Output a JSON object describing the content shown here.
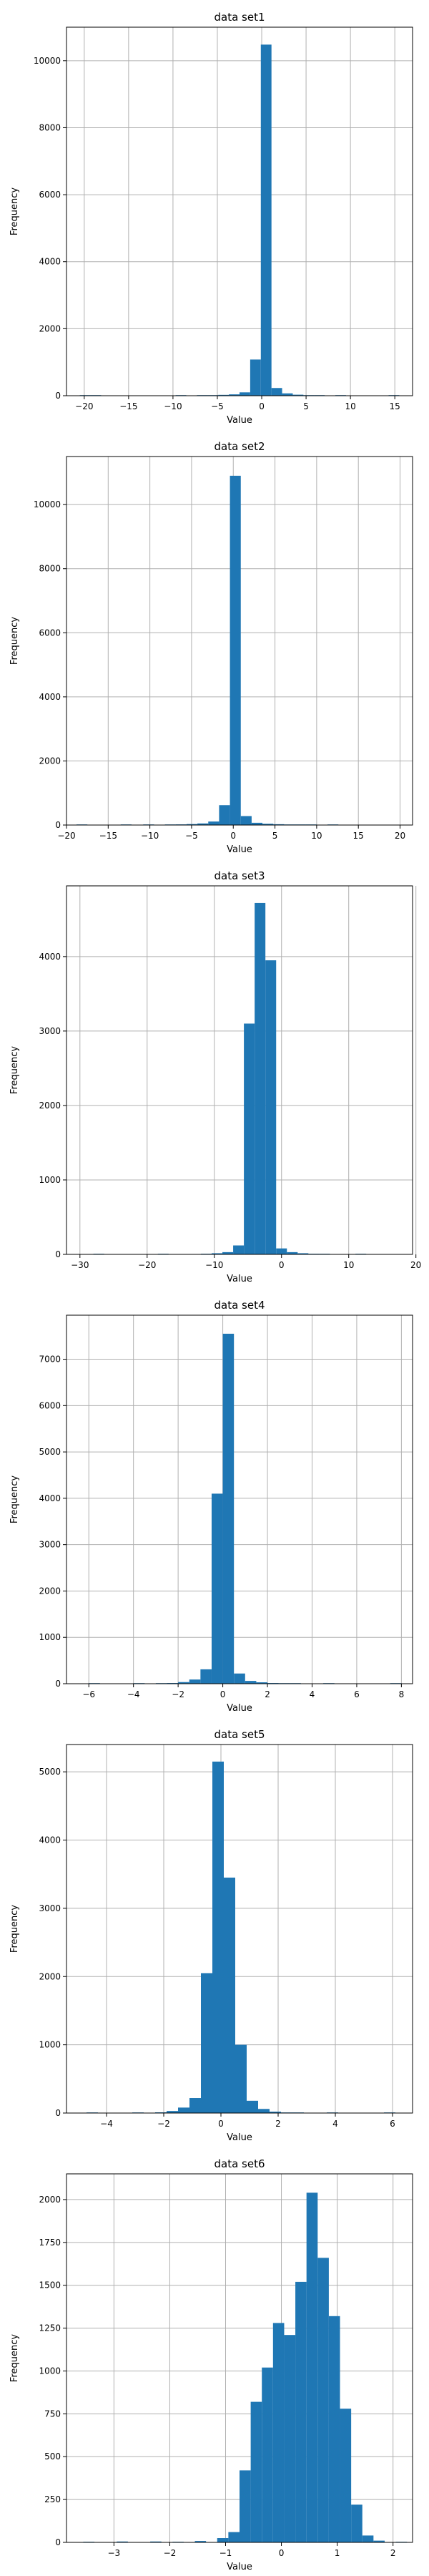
{
  "chart_data": [
    {
      "type": "bar",
      "title": "data set1",
      "xlabel": "Value",
      "ylabel": "Frequency",
      "xlim": [
        -22,
        17
      ],
      "ylim": [
        0,
        11000
      ],
      "xticks": [
        -20,
        -15,
        -10,
        -5,
        0,
        5,
        10,
        15
      ],
      "yticks": [
        0,
        2000,
        4000,
        6000,
        8000,
        10000
      ],
      "grid": true,
      "bins": [
        {
          "x0": -20.5,
          "x1": -19.3,
          "value": 2
        },
        {
          "x0": -19.3,
          "x1": -18.1,
          "value": 1
        },
        {
          "x0": -9.7,
          "x1": -8.5,
          "value": 3
        },
        {
          "x0": -7.3,
          "x1": -6.1,
          "value": 8
        },
        {
          "x0": -6.1,
          "x1": -4.9,
          "value": 15
        },
        {
          "x0": -4.9,
          "x1": -3.7,
          "value": 25
        },
        {
          "x0": -3.7,
          "x1": -2.5,
          "value": 40
        },
        {
          "x0": -2.5,
          "x1": -1.3,
          "value": 100
        },
        {
          "x0": -1.3,
          "x1": -0.1,
          "value": 1080
        },
        {
          "x0": -0.1,
          "x1": 1.1,
          "value": 10480
        },
        {
          "x0": 1.1,
          "x1": 2.3,
          "value": 230
        },
        {
          "x0": 2.3,
          "x1": 3.5,
          "value": 70
        },
        {
          "x0": 3.5,
          "x1": 4.7,
          "value": 30
        },
        {
          "x0": 4.7,
          "x1": 5.9,
          "value": 12
        },
        {
          "x0": 5.9,
          "x1": 7.1,
          "value": 6
        },
        {
          "x0": 8.3,
          "x1": 9.5,
          "value": 3
        },
        {
          "x0": 14.3,
          "x1": 15.5,
          "value": 1
        }
      ]
    },
    {
      "type": "bar",
      "title": "data set2",
      "xlabel": "Value",
      "ylabel": "Frequency",
      "xlim": [
        -20,
        21.5
      ],
      "ylim": [
        0,
        11500
      ],
      "xticks": [
        -20,
        -15,
        -10,
        -5,
        0,
        5,
        10,
        15,
        20
      ],
      "yticks": [
        0,
        2000,
        4000,
        6000,
        8000,
        10000
      ],
      "grid": true,
      "bins": [
        {
          "x0": -18.8,
          "x1": -17.5,
          "value": 2
        },
        {
          "x0": -13.5,
          "x1": -12.2,
          "value": 3
        },
        {
          "x0": -10.8,
          "x1": -9.5,
          "value": 5
        },
        {
          "x0": -8.2,
          "x1": -6.9,
          "value": 10
        },
        {
          "x0": -6.9,
          "x1": -5.6,
          "value": 20
        },
        {
          "x0": -5.6,
          "x1": -4.3,
          "value": 30
        },
        {
          "x0": -4.3,
          "x1": -3.0,
          "value": 50
        },
        {
          "x0": -3.0,
          "x1": -1.7,
          "value": 110
        },
        {
          "x0": -1.7,
          "x1": -0.4,
          "value": 620
        },
        {
          "x0": -0.4,
          "x1": 0.9,
          "value": 10900
        },
        {
          "x0": 0.9,
          "x1": 2.2,
          "value": 280
        },
        {
          "x0": 2.2,
          "x1": 3.5,
          "value": 70
        },
        {
          "x0": 3.5,
          "x1": 4.8,
          "value": 40
        },
        {
          "x0": 4.8,
          "x1": 6.1,
          "value": 25
        },
        {
          "x0": 6.1,
          "x1": 7.4,
          "value": 12
        },
        {
          "x0": 7.4,
          "x1": 8.7,
          "value": 6
        },
        {
          "x0": 8.7,
          "x1": 10.0,
          "value": 4
        },
        {
          "x0": 11.3,
          "x1": 12.6,
          "value": 2
        }
      ]
    },
    {
      "type": "bar",
      "title": "data set3",
      "xlabel": "Value",
      "ylabel": "Frequency",
      "xlim": [
        -32,
        19.5
      ],
      "ylim": [
        0,
        4950
      ],
      "xticks": [
        -30,
        -20,
        -10,
        0,
        10,
        20
      ],
      "yticks": [
        0,
        1000,
        2000,
        3000,
        4000
      ],
      "grid": true,
      "bins": [
        {
          "x0": -28.0,
          "x1": -26.4,
          "value": 2
        },
        {
          "x0": -18.4,
          "x1": -16.8,
          "value": 3
        },
        {
          "x0": -12.0,
          "x1": -10.4,
          "value": 8
        },
        {
          "x0": -10.4,
          "x1": -8.8,
          "value": 15
        },
        {
          "x0": -8.8,
          "x1": -7.2,
          "value": 30
        },
        {
          "x0": -7.2,
          "x1": -5.6,
          "value": 120
        },
        {
          "x0": -5.6,
          "x1": -4.0,
          "value": 3100
        },
        {
          "x0": -4.0,
          "x1": -2.4,
          "value": 4720
        },
        {
          "x0": -2.4,
          "x1": -0.8,
          "value": 3950
        },
        {
          "x0": -0.8,
          "x1": 0.8,
          "value": 80
        },
        {
          "x0": 0.8,
          "x1": 2.4,
          "value": 30
        },
        {
          "x0": 2.4,
          "x1": 4.0,
          "value": 15
        },
        {
          "x0": 4.0,
          "x1": 5.6,
          "value": 8
        },
        {
          "x0": 5.6,
          "x1": 7.2,
          "value": 4
        },
        {
          "x0": 11.0,
          "x1": 12.6,
          "value": 2
        }
      ]
    },
    {
      "type": "bar",
      "title": "data set4",
      "xlabel": "Value",
      "ylabel": "Frequency",
      "xlim": [
        -7,
        8.5
      ],
      "ylim": [
        0,
        7950
      ],
      "xticks": [
        -6,
        -4,
        -2,
        0,
        2,
        4,
        6,
        8
      ],
      "yticks": [
        0,
        1000,
        2000,
        3000,
        4000,
        5000,
        6000,
        7000
      ],
      "grid": true,
      "bins": [
        {
          "x0": -6.0,
          "x1": -5.5,
          "value": 2
        },
        {
          "x0": -4.0,
          "x1": -3.5,
          "value": 3
        },
        {
          "x0": -3.0,
          "x1": -2.5,
          "value": 8
        },
        {
          "x0": -2.5,
          "x1": -2.0,
          "value": 15
        },
        {
          "x0": -2.0,
          "x1": -1.5,
          "value": 35
        },
        {
          "x0": -1.5,
          "x1": -1.0,
          "value": 90
        },
        {
          "x0": -1.0,
          "x1": -0.5,
          "value": 310
        },
        {
          "x0": -0.5,
          "x1": 0.0,
          "value": 4100
        },
        {
          "x0": 0.0,
          "x1": 0.5,
          "value": 7550
        },
        {
          "x0": 0.5,
          "x1": 1.0,
          "value": 220
        },
        {
          "x0": 1.0,
          "x1": 1.5,
          "value": 60
        },
        {
          "x0": 1.5,
          "x1": 2.0,
          "value": 30
        },
        {
          "x0": 2.0,
          "x1": 2.5,
          "value": 15
        },
        {
          "x0": 2.5,
          "x1": 3.0,
          "value": 8
        },
        {
          "x0": 3.0,
          "x1": 3.5,
          "value": 4
        },
        {
          "x0": 4.5,
          "x1": 5.0,
          "value": 2
        },
        {
          "x0": 7.5,
          "x1": 8.0,
          "value": 1
        }
      ]
    },
    {
      "type": "bar",
      "title": "data set5",
      "xlabel": "Value",
      "ylabel": "Frequency",
      "xlim": [
        -5.4,
        6.7
      ],
      "ylim": [
        0,
        5400
      ],
      "xticks": [
        -4,
        -2,
        0,
        2,
        4,
        6
      ],
      "yticks": [
        0,
        1000,
        2000,
        3000,
        4000,
        5000
      ],
      "grid": true,
      "bins": [
        {
          "x0": -4.7,
          "x1": -4.3,
          "value": 2
        },
        {
          "x0": -3.1,
          "x1": -2.7,
          "value": 4
        },
        {
          "x0": -2.3,
          "x1": -1.9,
          "value": 10
        },
        {
          "x0": -1.9,
          "x1": -1.5,
          "value": 30
        },
        {
          "x0": -1.5,
          "x1": -1.1,
          "value": 80
        },
        {
          "x0": -1.1,
          "x1": -0.7,
          "value": 220
        },
        {
          "x0": -0.7,
          "x1": -0.3,
          "value": 2050
        },
        {
          "x0": -0.3,
          "x1": 0.1,
          "value": 5150
        },
        {
          "x0": 0.1,
          "x1": 0.5,
          "value": 3450
        },
        {
          "x0": 0.5,
          "x1": 0.9,
          "value": 1000
        },
        {
          "x0": 0.9,
          "x1": 1.3,
          "value": 180
        },
        {
          "x0": 1.3,
          "x1": 1.7,
          "value": 60
        },
        {
          "x0": 1.7,
          "x1": 2.1,
          "value": 20
        },
        {
          "x0": 2.1,
          "x1": 2.5,
          "value": 8
        },
        {
          "x0": 2.5,
          "x1": 2.9,
          "value": 4
        },
        {
          "x0": 3.7,
          "x1": 4.1,
          "value": 2
        },
        {
          "x0": 5.7,
          "x1": 6.1,
          "value": 1
        }
      ]
    },
    {
      "type": "bar",
      "title": "data set6",
      "xlabel": "Value",
      "ylabel": "Frequency",
      "xlim": [
        -3.85,
        2.35
      ],
      "ylim": [
        0,
        2150
      ],
      "xticks": [
        -3,
        -2,
        -1,
        0,
        1,
        2
      ],
      "yticks": [
        0,
        250,
        500,
        750,
        1000,
        1250,
        1500,
        1750,
        2000
      ],
      "grid": true,
      "bins": [
        {
          "x0": -3.55,
          "x1": -3.35,
          "value": 3
        },
        {
          "x0": -2.95,
          "x1": -2.75,
          "value": 5
        },
        {
          "x0": -2.35,
          "x1": -2.15,
          "value": 5
        },
        {
          "x0": -1.95,
          "x1": -1.75,
          "value": 3
        },
        {
          "x0": -1.55,
          "x1": -1.35,
          "value": 8
        },
        {
          "x0": -1.15,
          "x1": -0.95,
          "value": 25
        },
        {
          "x0": -0.95,
          "x1": -0.75,
          "value": 60
        },
        {
          "x0": -0.75,
          "x1": -0.55,
          "value": 420
        },
        {
          "x0": -0.55,
          "x1": -0.35,
          "value": 820
        },
        {
          "x0": -0.35,
          "x1": -0.15,
          "value": 1020
        },
        {
          "x0": -0.15,
          "x1": 0.05,
          "value": 1280
        },
        {
          "x0": 0.05,
          "x1": 0.25,
          "value": 1210
        },
        {
          "x0": 0.25,
          "x1": 0.45,
          "value": 1520
        },
        {
          "x0": 0.45,
          "x1": 0.65,
          "value": 2040
        },
        {
          "x0": 0.65,
          "x1": 0.85,
          "value": 1660
        },
        {
          "x0": 0.85,
          "x1": 1.05,
          "value": 1320
        },
        {
          "x0": 1.05,
          "x1": 1.25,
          "value": 780
        },
        {
          "x0": 1.25,
          "x1": 1.45,
          "value": 220
        },
        {
          "x0": 1.45,
          "x1": 1.65,
          "value": 40
        },
        {
          "x0": 1.65,
          "x1": 1.85,
          "value": 10
        },
        {
          "x0": 2.05,
          "x1": 2.25,
          "value": 3
        }
      ]
    }
  ]
}
